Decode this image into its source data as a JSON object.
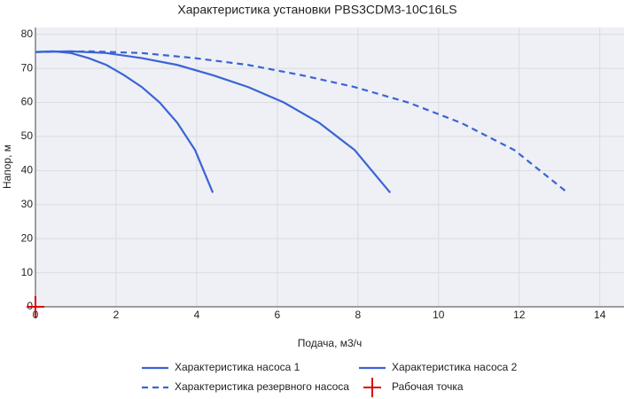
{
  "chart_data": {
    "type": "line",
    "title": "Характеристика установки PBS3CDM3-10C16LS",
    "x_label": "Подача, м3/ч",
    "y_label": "Напор, м",
    "xlim": [
      0,
      14.6
    ],
    "ylim": [
      0,
      82
    ],
    "xticks": [
      0,
      2,
      4,
      6,
      8,
      10,
      12,
      14
    ],
    "yticks": [
      0,
      10,
      20,
      30,
      40,
      50,
      60,
      70,
      80
    ],
    "grid": true,
    "series": [
      {
        "name": "Характеристика насоса 1",
        "color": "#3b64d4",
        "dash": "solid",
        "x": [
          0,
          0.44,
          0.88,
          1.32,
          1.76,
          2.2,
          2.64,
          3.08,
          3.52,
          3.96,
          4.4
        ],
        "values": [
          74.8,
          75,
          74.5,
          73,
          71,
          68,
          64.5,
          60,
          54,
          46,
          33.5
        ]
      },
      {
        "name": "Характеристика насоса 2",
        "color": "#3b64d4",
        "dash": "solid",
        "x": [
          0,
          0.88,
          1.76,
          2.64,
          3.52,
          4.4,
          5.28,
          6.16,
          7.04,
          7.92,
          8.8
        ],
        "values": [
          74.8,
          75,
          74.5,
          73,
          71,
          68,
          64.5,
          60,
          54,
          46,
          33.5
        ]
      },
      {
        "name": "Характеристика резервного насоса",
        "color": "#3b64d4",
        "dash": "dash",
        "x": [
          0,
          1.32,
          2.64,
          3.96,
          5.28,
          6.6,
          7.92,
          9.24,
          10.56,
          11.88,
          13.2
        ],
        "values": [
          74.8,
          75,
          74.5,
          73,
          71,
          68,
          64.5,
          60,
          54,
          46,
          33.5
        ]
      },
      {
        "name": "Рабочая точка",
        "color": "#e00000",
        "marker": "cross",
        "x": [
          0
        ],
        "values": [
          0
        ]
      }
    ]
  }
}
